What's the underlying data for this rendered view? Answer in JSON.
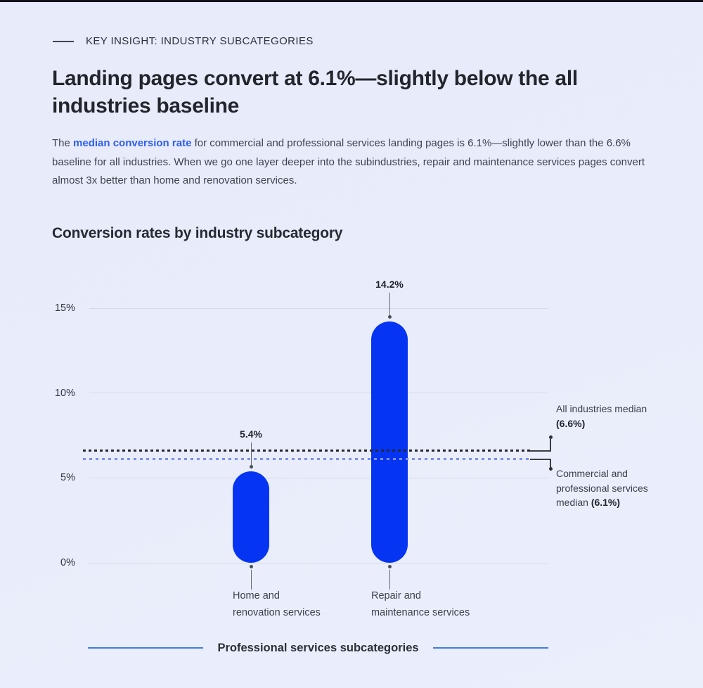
{
  "header": {
    "eyebrow": "KEY INSIGHT: INDUSTRY SUBCATEGORIES",
    "title_lines": [
      "Landing pages convert at 6.1%—slightly below the all",
      "industries baseline"
    ]
  },
  "intro": {
    "pre": "The ",
    "link_text": "median conversion rate",
    "post": " for commercial and professional services landing pages is 6.1%—slightly lower than the 6.6% baseline for all industries. When we go one layer deeper into the subindustries, repair and maintenance services pages convert almost 3x better than home and renovation services."
  },
  "annotations": {
    "all_industries": {
      "line1": "All industries median",
      "line2": "(6.6%)"
    },
    "commercial": {
      "line1": "Commercial and",
      "line2": "professional services",
      "line3_pre": "median ",
      "line3_bold": "(6.1%)"
    }
  },
  "colors": {
    "background": "#e8ecfa",
    "bar_blue": "#0535f2",
    "link_blue": "#2d5cf5",
    "axis_line_blue": "#3b7af5",
    "dashed_dark": "#26282e",
    "dashed_blue": "#7e91ee"
  },
  "chart_data": {
    "type": "bar",
    "title": "Conversion rates by industry subcategory",
    "categories": [
      "Home and renovation services",
      "Repair and maintenance services"
    ],
    "category_label_lines": [
      [
        "Home and",
        "renovation services"
      ],
      [
        "Repair and",
        "maintenance services"
      ]
    ],
    "values": [
      5.4,
      14.2
    ],
    "value_labels": [
      "5.4%",
      "14.2%"
    ],
    "unit": "%",
    "yticks": [
      "0%",
      "5%",
      "10%",
      "15%"
    ],
    "ytick_values": [
      0,
      5,
      10,
      15
    ],
    "ylim": [
      0,
      15
    ],
    "xlabel": "Professional services subcategories",
    "grid": true,
    "legend": "none",
    "bar_color": "#0535f2",
    "reference_lines": [
      {
        "name": "All industries median",
        "value": 6.6,
        "label": "All industries median (6.6%)",
        "style": "dashed-dark"
      },
      {
        "name": "Commercial and professional services median",
        "value": 6.1,
        "label": "Commercial and professional services median (6.1%)",
        "style": "dashed-blue"
      }
    ]
  }
}
